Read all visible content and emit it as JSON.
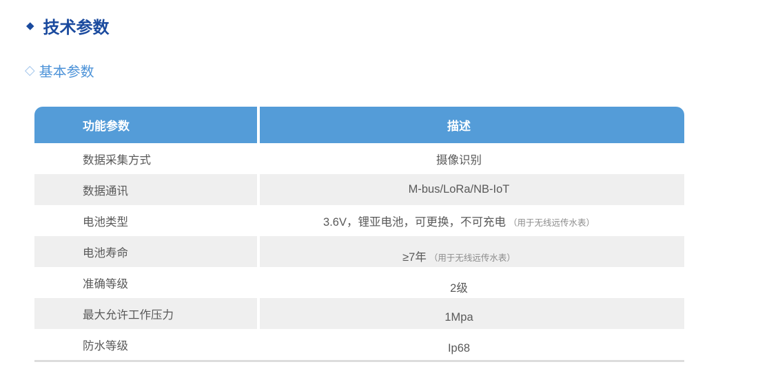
{
  "page": {
    "section_bullet": "◆",
    "section_title": "技术参数",
    "subsection_bullet": "◇",
    "subsection_title": "基本参数"
  },
  "colors": {
    "section_title_blue": "#1a4a9e",
    "subsection_blue": "#4b92d8",
    "table_header_blue": "#549cd8",
    "alt_row_gray": "#efefef",
    "cell_text_gray": "#595959",
    "note_text_gray": "#8c8c8c",
    "bottom_rule_gray": "#dcdcdc"
  },
  "table": {
    "headers": [
      "功能参数",
      "描述"
    ],
    "rows": [
      {
        "param": "数据采集方式",
        "desc": "摄像识别",
        "note": ""
      },
      {
        "param": "数据通讯",
        "desc": "M-bus/LoRa/NB-IoT",
        "note": ""
      },
      {
        "param": "电池类型",
        "desc": "3.6V，锂亚电池，可更换，不可充电",
        "note": "（用于无线远传水表）"
      },
      {
        "param": "电池寿命",
        "desc": "≥7年",
        "note": "（用于无线远传水表）"
      },
      {
        "param": "准确等级",
        "desc": "2级",
        "note": ""
      },
      {
        "param": "最大允许工作压力",
        "desc": "1Mpa",
        "note": ""
      },
      {
        "param": "防水等级",
        "desc": "Ip68",
        "note": ""
      }
    ]
  }
}
